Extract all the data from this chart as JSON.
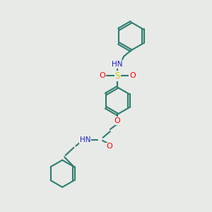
{
  "bg_color": "#e8eae8",
  "atom_color_C": "#2d7d6e",
  "atom_color_N": "#2020c0",
  "atom_color_O": "#ff0000",
  "atom_color_S": "#cccc00",
  "bond_color": "#2d7d6e",
  "bond_width": 1.5,
  "fig_size": [
    3.0,
    3.0
  ],
  "dpi": 100,
  "xlim": [
    0,
    10
  ],
  "ylim": [
    0,
    10
  ]
}
